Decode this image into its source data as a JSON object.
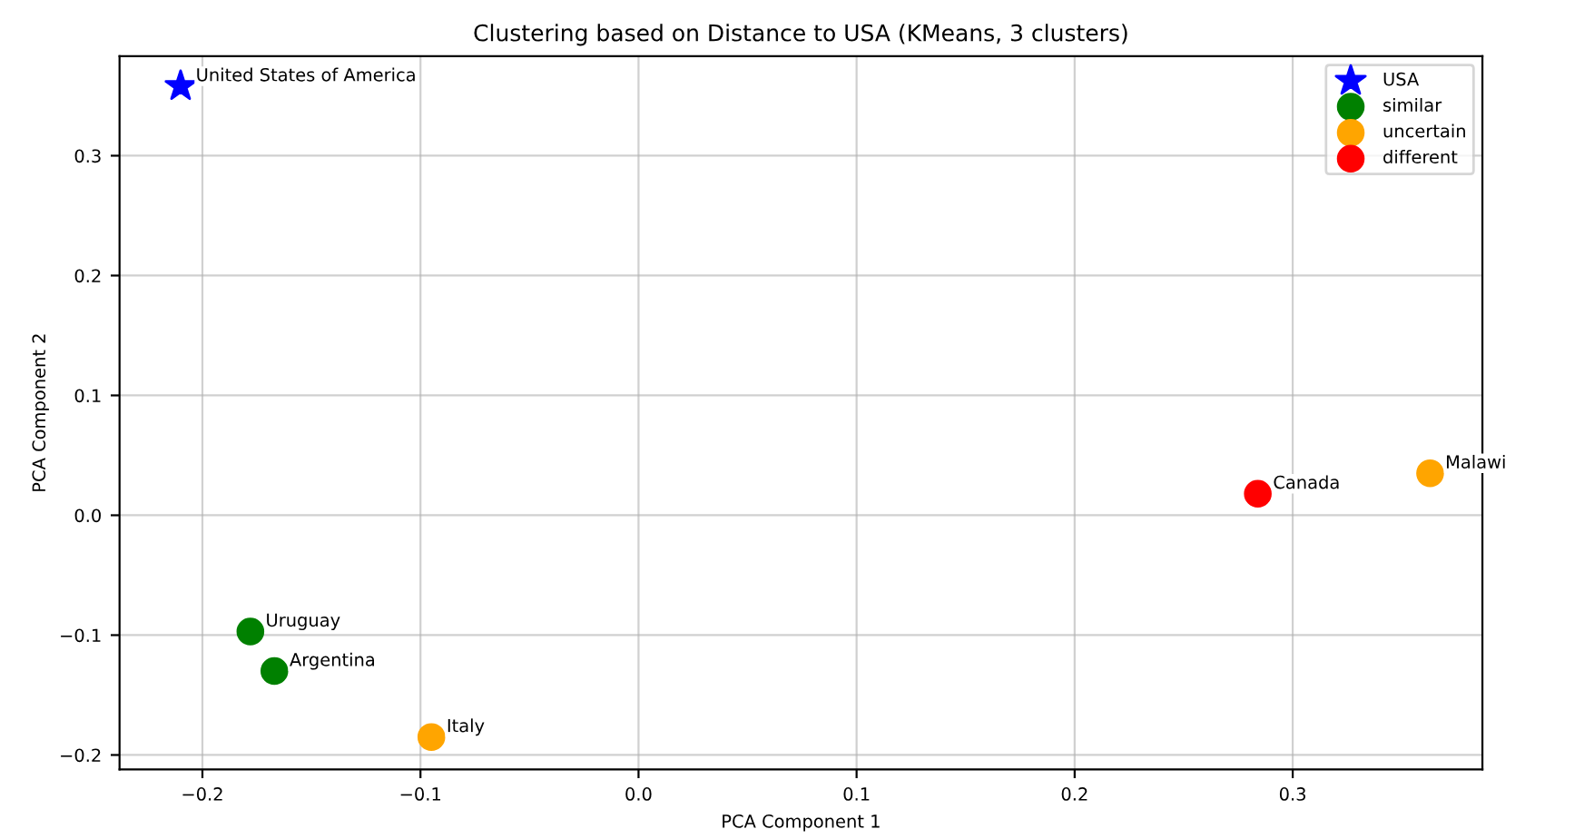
{
  "chart_data": {
    "type": "scatter",
    "title": "Clustering based on Distance to USA (KMeans, 3 clusters)",
    "xlabel": "PCA Component 1",
    "ylabel": "PCA Component 2",
    "series": [
      {
        "name": "USA",
        "color": "#0000ff",
        "marker": "star",
        "x": [
          -0.21
        ],
        "values": [
          0.358
        ]
      },
      {
        "name": "similar",
        "color": "#008000",
        "marker": "circle",
        "x": [
          -0.178,
          -0.167
        ],
        "values": [
          -0.097,
          -0.13
        ]
      },
      {
        "name": "uncertain",
        "color": "#ffa500",
        "marker": "circle",
        "x": [
          -0.095,
          0.363
        ],
        "values": [
          -0.185,
          0.035
        ]
      },
      {
        "name": "different",
        "color": "#ff0000",
        "marker": "circle",
        "x": [
          0.284
        ],
        "values": [
          0.018
        ]
      }
    ],
    "annotations": [
      {
        "text": "United States of America",
        "x": -0.21,
        "y": 0.358
      },
      {
        "text": "Uruguay",
        "x": -0.178,
        "y": -0.097
      },
      {
        "text": "Argentina",
        "x": -0.167,
        "y": -0.13
      },
      {
        "text": "Italy",
        "x": -0.095,
        "y": -0.185
      },
      {
        "text": "Malawi",
        "x": 0.363,
        "y": 0.035
      },
      {
        "text": "Canada",
        "x": 0.284,
        "y": 0.018
      }
    ],
    "xlim": [
      -0.238,
      0.387
    ],
    "ylim": [
      -0.212,
      0.383
    ],
    "xticks": [
      {
        "value": -0.2,
        "label": "−0.2"
      },
      {
        "value": -0.1,
        "label": "−0.1"
      },
      {
        "value": 0,
        "label": "0.0"
      },
      0.1,
      0.2,
      0.3
    ],
    "yticks": [
      {
        "value": -0.2,
        "label": "−0.2"
      },
      {
        "value": -0.1,
        "label": "−0.1"
      },
      {
        "value": 0,
        "label": "0.0"
      },
      0.1,
      0.2,
      0.3
    ],
    "grid": true,
    "legend": "top right"
  }
}
